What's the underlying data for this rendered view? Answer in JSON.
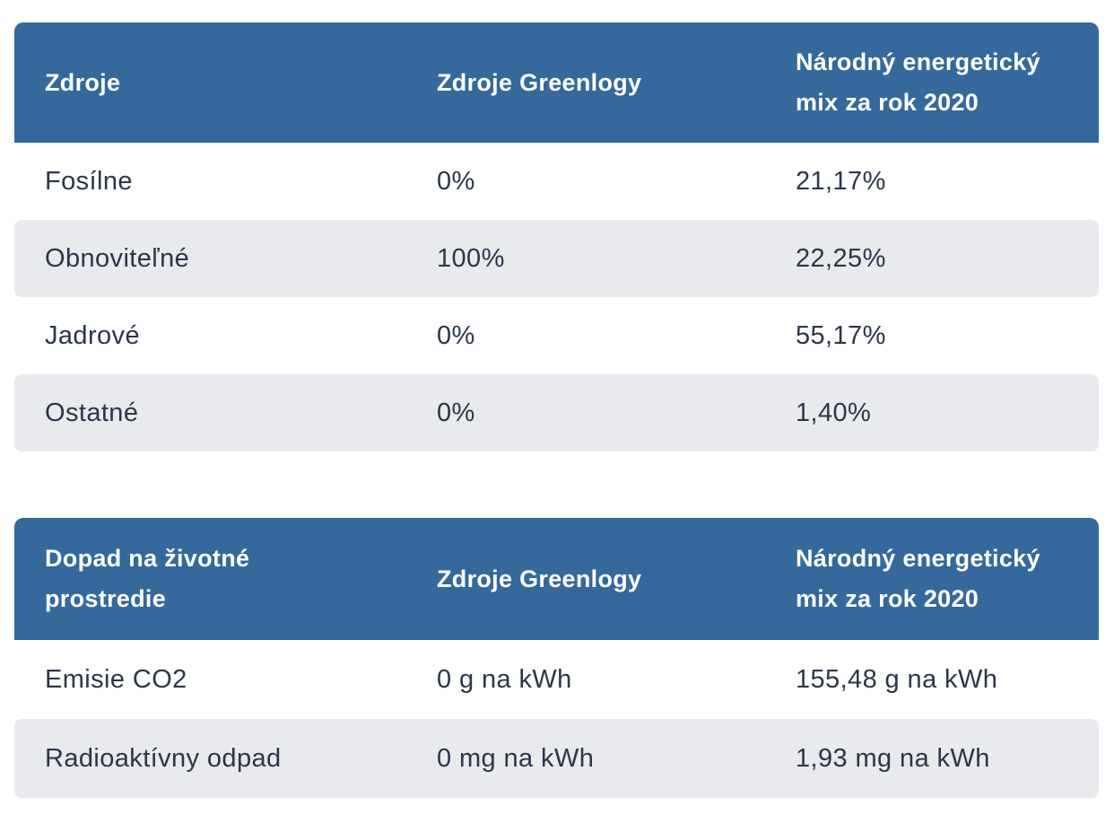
{
  "colors": {
    "header_bg": "#35689b",
    "header_text": "#ffffff",
    "row_alt_bg": "#e8eaee",
    "body_text": "#2b3648",
    "page_bg": "#ffffff"
  },
  "tables": [
    {
      "columns": [
        "Zdroje",
        "Zdroje Greenlogy",
        "Národný energetický mix za rok 2020"
      ],
      "rows": [
        [
          "Fosílne",
          "0%",
          "21,17%"
        ],
        [
          "Obnoviteľné",
          "100%",
          "22,25%"
        ],
        [
          "Jadrové",
          "0%",
          "55,17%"
        ],
        [
          "Ostatné",
          "0%",
          "1,40%"
        ]
      ]
    },
    {
      "columns": [
        "Dopad na životné prostredie",
        "Zdroje Greenlogy",
        "Národný energetický mix za rok 2020"
      ],
      "rows": [
        [
          "Emisie CO2",
          "0 g na kWh",
          "155,48 g na kWh"
        ],
        [
          "Radioaktívny odpad",
          "0 mg na kWh",
          "1,93 mg na kWh"
        ]
      ]
    }
  ],
  "chart_data": [
    {
      "type": "table",
      "title": "Zdroje",
      "columns": [
        "Zdroje",
        "Zdroje Greenlogy",
        "Národný energetický mix za rok 2020"
      ],
      "categories": [
        "Fosílne",
        "Obnoviteľné",
        "Jadrové",
        "Ostatné"
      ],
      "series": [
        {
          "name": "Zdroje Greenlogy",
          "values": [
            0,
            100,
            0,
            0
          ],
          "unit": "%"
        },
        {
          "name": "Národný energetický mix za rok 2020",
          "values": [
            21.17,
            22.25,
            55.17,
            1.4
          ],
          "unit": "%"
        }
      ]
    },
    {
      "type": "table",
      "title": "Dopad na životné prostredie",
      "columns": [
        "Dopad na životné prostredie",
        "Zdroje Greenlogy",
        "Národný energetický mix za rok 2020"
      ],
      "categories": [
        "Emisie CO2",
        "Radioaktívny odpad"
      ],
      "series": [
        {
          "name": "Zdroje Greenlogy",
          "values": [
            0,
            0
          ],
          "units": [
            "g na kWh",
            "mg na kWh"
          ]
        },
        {
          "name": "Národný energetický mix za rok 2020",
          "values": [
            155.48,
            1.93
          ],
          "units": [
            "g na kWh",
            "mg na kWh"
          ]
        }
      ]
    }
  ]
}
